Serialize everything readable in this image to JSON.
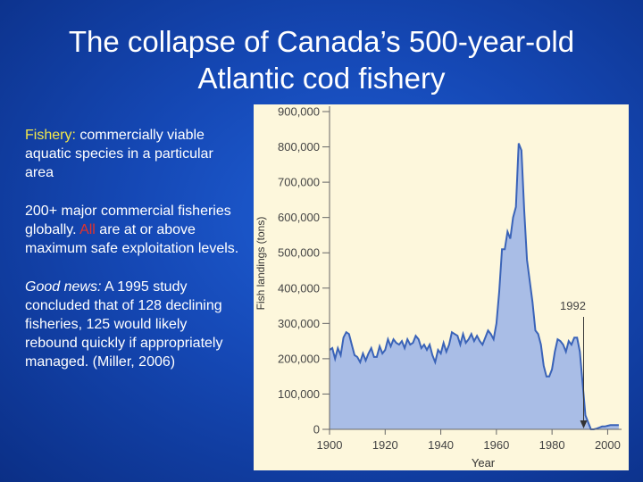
{
  "slide": {
    "title_line1": "The collapse of Canada’s 500-year-old",
    "title_line2": "Atlantic cod fishery",
    "para1_term": "Fishery:",
    "para1_rest": " commercially viable aquatic species in a particular area",
    "para2_start": "200+ major commercial fisheries globally.  ",
    "para2_highlight": "All",
    "para2_end": " are at or above maximum safe exploitation levels.",
    "para3_lead": "Good news:",
    "para3_rest": " A 1995 study concluded that of 128 declining fisheries, 125 would likely rebound quickly if appropriately managed. (Miller, 2006)",
    "colors": {
      "background": "#1548b5",
      "term": "#f2e84b",
      "highlight": "#e3322b",
      "text": "#ffffff"
    }
  },
  "chart_data": {
    "type": "area",
    "title": "",
    "xlabel": "Year",
    "ylabel": "Fish landings (tons)",
    "xlim": [
      1900,
      2005
    ],
    "ylim": [
      0,
      900000
    ],
    "x_ticks": [
      1900,
      1920,
      1940,
      1960,
      1980,
      2000
    ],
    "x_tick_labels": [
      "1900",
      "1920",
      "1940",
      "1960",
      "1980",
      "2000"
    ],
    "y_ticks": [
      0,
      100000,
      200000,
      300000,
      400000,
      500000,
      600000,
      700000,
      800000,
      900000
    ],
    "y_tick_labels": [
      "0",
      "100,000",
      "200,000",
      "300,000",
      "400,000",
      "500,000",
      "600,000",
      "700,000",
      "800,000",
      "900,000"
    ],
    "annotation": {
      "text": "1992",
      "x": 1992,
      "y": 0
    },
    "grid": false,
    "colors": {
      "fill": "#a9bde6",
      "line": "#3a63b8",
      "panel": "#fdf7dc"
    },
    "series": [
      {
        "x": [
          1900,
          1901,
          1902,
          1903,
          1904,
          1905,
          1906,
          1907,
          1908,
          1909,
          1910,
          1911,
          1912,
          1913,
          1914,
          1915,
          1916,
          1917,
          1918,
          1919,
          1920,
          1921,
          1922,
          1923,
          1924,
          1925,
          1926,
          1927,
          1928,
          1929,
          1930,
          1931,
          1932,
          1933,
          1934,
          1935,
          1936,
          1937,
          1938,
          1939,
          1940,
          1941,
          1942,
          1943,
          1944,
          1945,
          1946,
          1947,
          1948,
          1949,
          1950,
          1951,
          1952,
          1953,
          1954,
          1955,
          1956,
          1957,
          1958,
          1959,
          1960,
          1961,
          1962,
          1963,
          1964,
          1965,
          1966,
          1967,
          1968,
          1969,
          1970,
          1971,
          1972,
          1973,
          1974,
          1975,
          1976,
          1977,
          1978,
          1979,
          1980,
          1981,
          1982,
          1983,
          1984,
          1985,
          1986,
          1987,
          1988,
          1989,
          1990,
          1991,
          1992,
          1993,
          1994,
          1995,
          1996,
          1997,
          1998,
          1999,
          2000,
          2001,
          2002,
          2003,
          2004
        ],
        "values": [
          225000,
          230000,
          200000,
          230000,
          210000,
          260000,
          275000,
          270000,
          240000,
          210000,
          205000,
          190000,
          215000,
          195000,
          215000,
          230000,
          205000,
          205000,
          235000,
          215000,
          225000,
          255000,
          235000,
          255000,
          245000,
          240000,
          250000,
          230000,
          255000,
          240000,
          245000,
          265000,
          255000,
          230000,
          240000,
          225000,
          240000,
          210000,
          190000,
          225000,
          215000,
          245000,
          220000,
          240000,
          275000,
          270000,
          265000,
          240000,
          270000,
          245000,
          255000,
          270000,
          250000,
          265000,
          250000,
          240000,
          260000,
          280000,
          270000,
          255000,
          300000,
          390000,
          510000,
          510000,
          560000,
          540000,
          600000,
          630000,
          810000,
          790000,
          620000,
          480000,
          420000,
          360000,
          280000,
          270000,
          240000,
          180000,
          150000,
          150000,
          170000,
          220000,
          255000,
          250000,
          240000,
          220000,
          250000,
          240000,
          260000,
          260000,
          220000,
          130000,
          40000,
          20000,
          0,
          0,
          2000,
          5000,
          8000,
          8000,
          10000,
          12000,
          12000,
          12000,
          12000
        ]
      }
    ]
  }
}
